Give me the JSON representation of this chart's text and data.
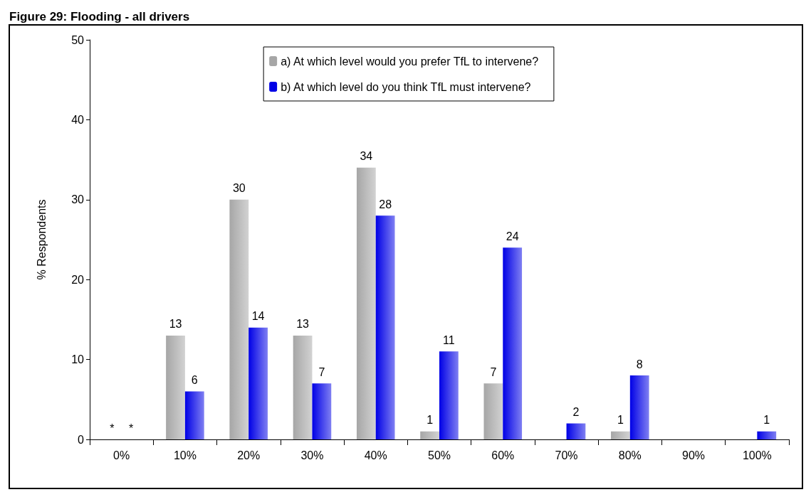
{
  "chart_data": {
    "type": "bar",
    "title": "Figure 29: Flooding - all drivers",
    "ylabel": "% Respondents",
    "categories": [
      "0%",
      "10%",
      "20%",
      "30%",
      "40%",
      "50%",
      "60%",
      "70%",
      "80%",
      "90%",
      "100%"
    ],
    "series": [
      {
        "name": "a) At which level would you prefer TfL to intervene?",
        "color": "#a6a6a6",
        "values": [
          0,
          13,
          30,
          13,
          34,
          1,
          7,
          null,
          1,
          null,
          null
        ],
        "value_labels": [
          "*",
          "13",
          "30",
          "13",
          "34",
          "1",
          "7",
          null,
          "1",
          null,
          null
        ]
      },
      {
        "name": "b) At which level do you think TfL must intervene?",
        "color": "#0000e6",
        "values": [
          0,
          6,
          14,
          7,
          28,
          11,
          24,
          2,
          8,
          null,
          1
        ],
        "value_labels": [
          "*",
          "6",
          "14",
          "7",
          "28",
          "11",
          "24",
          "2",
          "8",
          null,
          "1"
        ]
      }
    ],
    "ylim": [
      0,
      50
    ],
    "yticks": [
      0,
      10,
      20,
      30,
      40,
      50
    ],
    "grid": false,
    "legend": "top"
  }
}
